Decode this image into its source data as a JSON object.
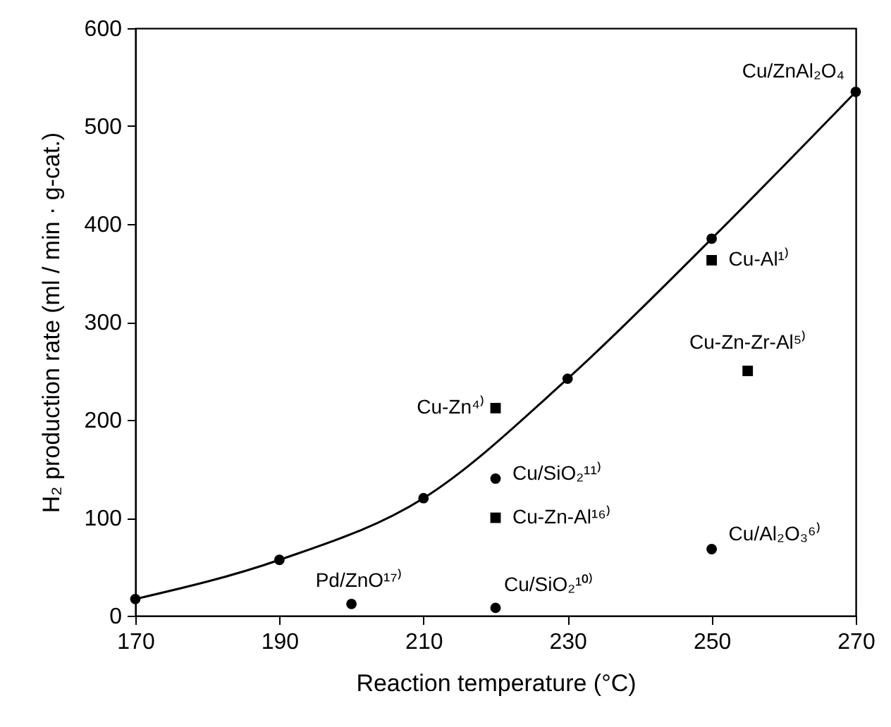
{
  "chart_data": {
    "type": "scatter",
    "xlabel": "Reaction temperature (°C)",
    "ylabel": "H₂ production rate (ml / min · g-cat.)",
    "xlim": [
      170,
      270
    ],
    "xticks": [
      170,
      190,
      210,
      230,
      250,
      270
    ],
    "ylim": [
      0,
      600
    ],
    "yticks": [
      0,
      100,
      200,
      300,
      400,
      500,
      600
    ],
    "grid": false,
    "series": [
      {
        "type": "line",
        "marker": "circle",
        "color": "#000000",
        "x": [
          170,
          190,
          210,
          230,
          250,
          270
        ],
        "values": [
          17,
          57,
          120,
          242,
          385,
          535
        ]
      },
      {
        "marker": "circle",
        "color": "#000000",
        "x": [
          200,
          220,
          220,
          250
        ],
        "values": [
          12,
          8,
          140,
          68
        ]
      },
      {
        "marker": "square",
        "color": "#000000",
        "x": [
          220,
          220,
          250,
          255
        ],
        "values": [
          212,
          100,
          363,
          250
        ]
      }
    ],
    "annotations": [
      {
        "text": "Cu/ZnAl₂O₄",
        "x": 270,
        "y": 535
      },
      {
        "text": "Cu-Al¹⁾",
        "x": 250,
        "y": 363
      },
      {
        "text": "Cu-Zn-Zr-Al⁵⁾",
        "x": 255,
        "y": 250
      },
      {
        "text": "Cu-Zn⁴⁾",
        "x": 220,
        "y": 212
      },
      {
        "text": "Cu/SiO₂¹¹⁾",
        "x": 220,
        "y": 140
      },
      {
        "text": "Cu-Zn-Al¹⁶⁾",
        "x": 220,
        "y": 100
      },
      {
        "text": "Cu/Al₂O₃⁶⁾",
        "x": 250,
        "y": 68
      },
      {
        "text": "Pd/ZnO¹⁷⁾",
        "x": 200,
        "y": 12
      },
      {
        "text": "Cu/SiO₂¹⁰⁾",
        "x": 220,
        "y": 8
      }
    ]
  }
}
